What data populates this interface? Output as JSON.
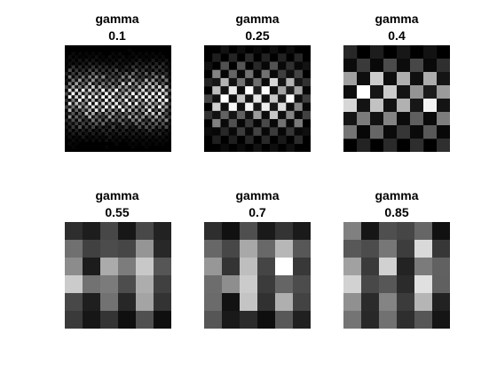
{
  "chart_data": [
    {
      "type": "heatmap",
      "title_line1": "gamma",
      "title_line2": "0.1",
      "gamma": 0.1,
      "colormap": "gray",
      "axes": "off"
    },
    {
      "type": "heatmap",
      "title_line1": "gamma",
      "title_line2": "0.25",
      "gamma": 0.25,
      "colormap": "gray",
      "axes": "off"
    },
    {
      "type": "heatmap",
      "title_line1": "gamma",
      "title_line2": "0.4",
      "gamma": 0.4,
      "colormap": "gray",
      "axes": "off"
    },
    {
      "type": "heatmap",
      "title_line1": "gamma",
      "title_line2": "0.55",
      "gamma": 0.55,
      "colormap": "gray",
      "axes": "off"
    },
    {
      "type": "heatmap",
      "title_line1": "gamma",
      "title_line2": "0.7",
      "gamma": 0.7,
      "colormap": "gray",
      "axes": "off"
    },
    {
      "type": "heatmap",
      "title_line1": "gamma",
      "title_line2": "0.85",
      "gamma": 0.85,
      "colormap": "gray",
      "axes": "off"
    }
  ],
  "colors": {
    "background": "#ffffff",
    "title": "#000000",
    "image_background": "#000000"
  }
}
